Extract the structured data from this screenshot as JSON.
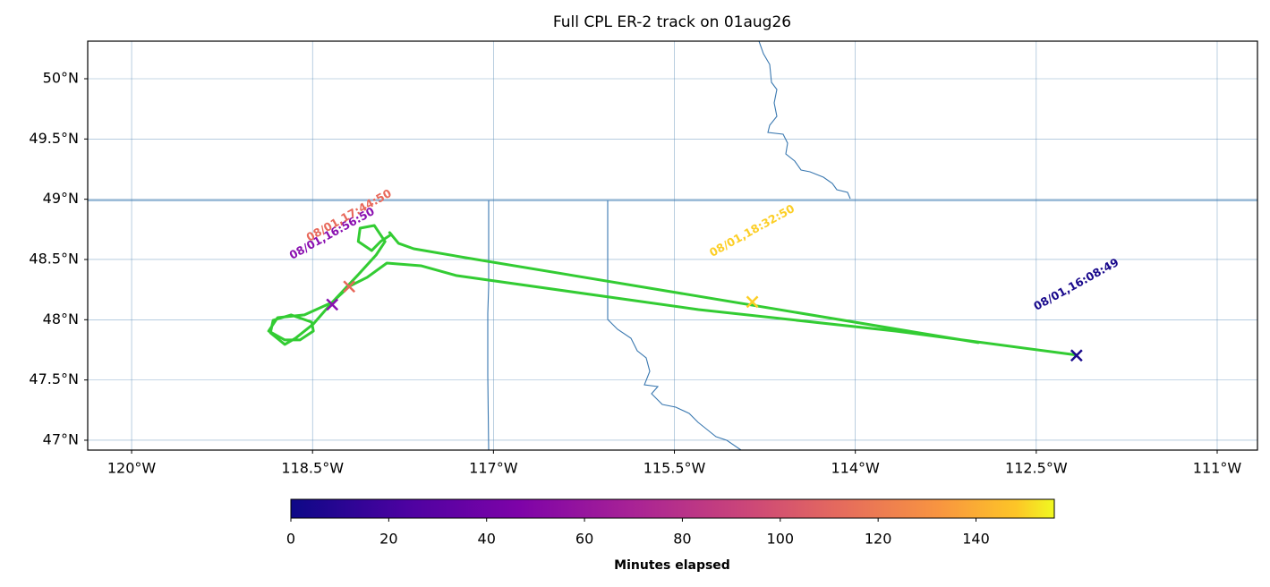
{
  "chart_data": {
    "type": "map-track",
    "title": "Full CPL ER-2 track on 01aug26",
    "xlim": [
      -120.364,
      -110.666
    ],
    "ylim": [
      46.918,
      50.312
    ],
    "xticks": [
      {
        "value": -120,
        "label": "120°W"
      },
      {
        "value": -118.5,
        "label": "118.5°W"
      },
      {
        "value": -117,
        "label": "117°W"
      },
      {
        "value": -115.5,
        "label": "115.5°W"
      },
      {
        "value": -114,
        "label": "114°W"
      },
      {
        "value": -112.5,
        "label": "112.5°W"
      },
      {
        "value": -111,
        "label": "111°W"
      }
    ],
    "yticks": [
      {
        "value": 47,
        "label": "47°N"
      },
      {
        "value": 47.5,
        "label": "47.5°N"
      },
      {
        "value": 48,
        "label": "48°N"
      },
      {
        "value": 48.5,
        "label": "48.5°N"
      },
      {
        "value": 49,
        "label": "49°N"
      },
      {
        "value": 49.5,
        "label": "49.5°N"
      },
      {
        "value": 50,
        "label": "50°N"
      }
    ],
    "grid": true,
    "track": {
      "color": "#33cc33",
      "lon": [
        -112.159,
        -113.666,
        -115.3,
        -117.305,
        -117.602,
        -117.884,
        -118.047,
        -118.196,
        -118.337,
        -118.493,
        -118.641,
        -118.73,
        -118.849,
        -118.827,
        -118.678,
        -118.507,
        -118.493,
        -118.604,
        -118.73,
        -118.864,
        -118.79,
        -118.567,
        -118.337,
        -118.121,
        -117.973,
        -117.899,
        -117.988,
        -118.106,
        -118.121,
        -118.01,
        -117.936,
        -117.847,
        -117.861,
        -117.787,
        -117.661,
        -117.23,
        -112.975
      ],
      "lat": [
        47.706,
        47.906,
        48.084,
        48.366,
        48.448,
        48.47,
        48.352,
        48.277,
        48.144,
        47.965,
        47.847,
        47.795,
        47.891,
        47.995,
        48.04,
        47.98,
        47.906,
        47.832,
        47.832,
        47.906,
        48.017,
        48.04,
        48.144,
        48.374,
        48.537,
        48.649,
        48.782,
        48.76,
        48.649,
        48.574,
        48.649,
        48.708,
        48.723,
        48.634,
        48.589,
        48.515,
        47.809
      ]
    },
    "markers": [
      {
        "label": "08/01,16:08:49",
        "lon": -112.166,
        "lat": 47.703,
        "minutes": 0,
        "color": "#1a0a8c"
      },
      {
        "label": "08/01,16:56:50",
        "lon": -118.337,
        "lat": 48.126,
        "minutes": 48,
        "color": "#8a10b0"
      },
      {
        "label": "08/01,17:44:50",
        "lon": -118.196,
        "lat": 48.275,
        "minutes": 96,
        "color": "#e8685a"
      },
      {
        "label": "08/01,18:32:50",
        "lon": -114.854,
        "lat": 48.148,
        "minutes": 144,
        "color": "#fcce25"
      }
    ],
    "colorbar": {
      "label": "Minutes elapsed",
      "colormap": "plasma",
      "lim": [
        0,
        156
      ],
      "ticks": [
        0,
        20,
        40,
        60,
        80,
        100,
        120,
        140
      ]
    }
  }
}
